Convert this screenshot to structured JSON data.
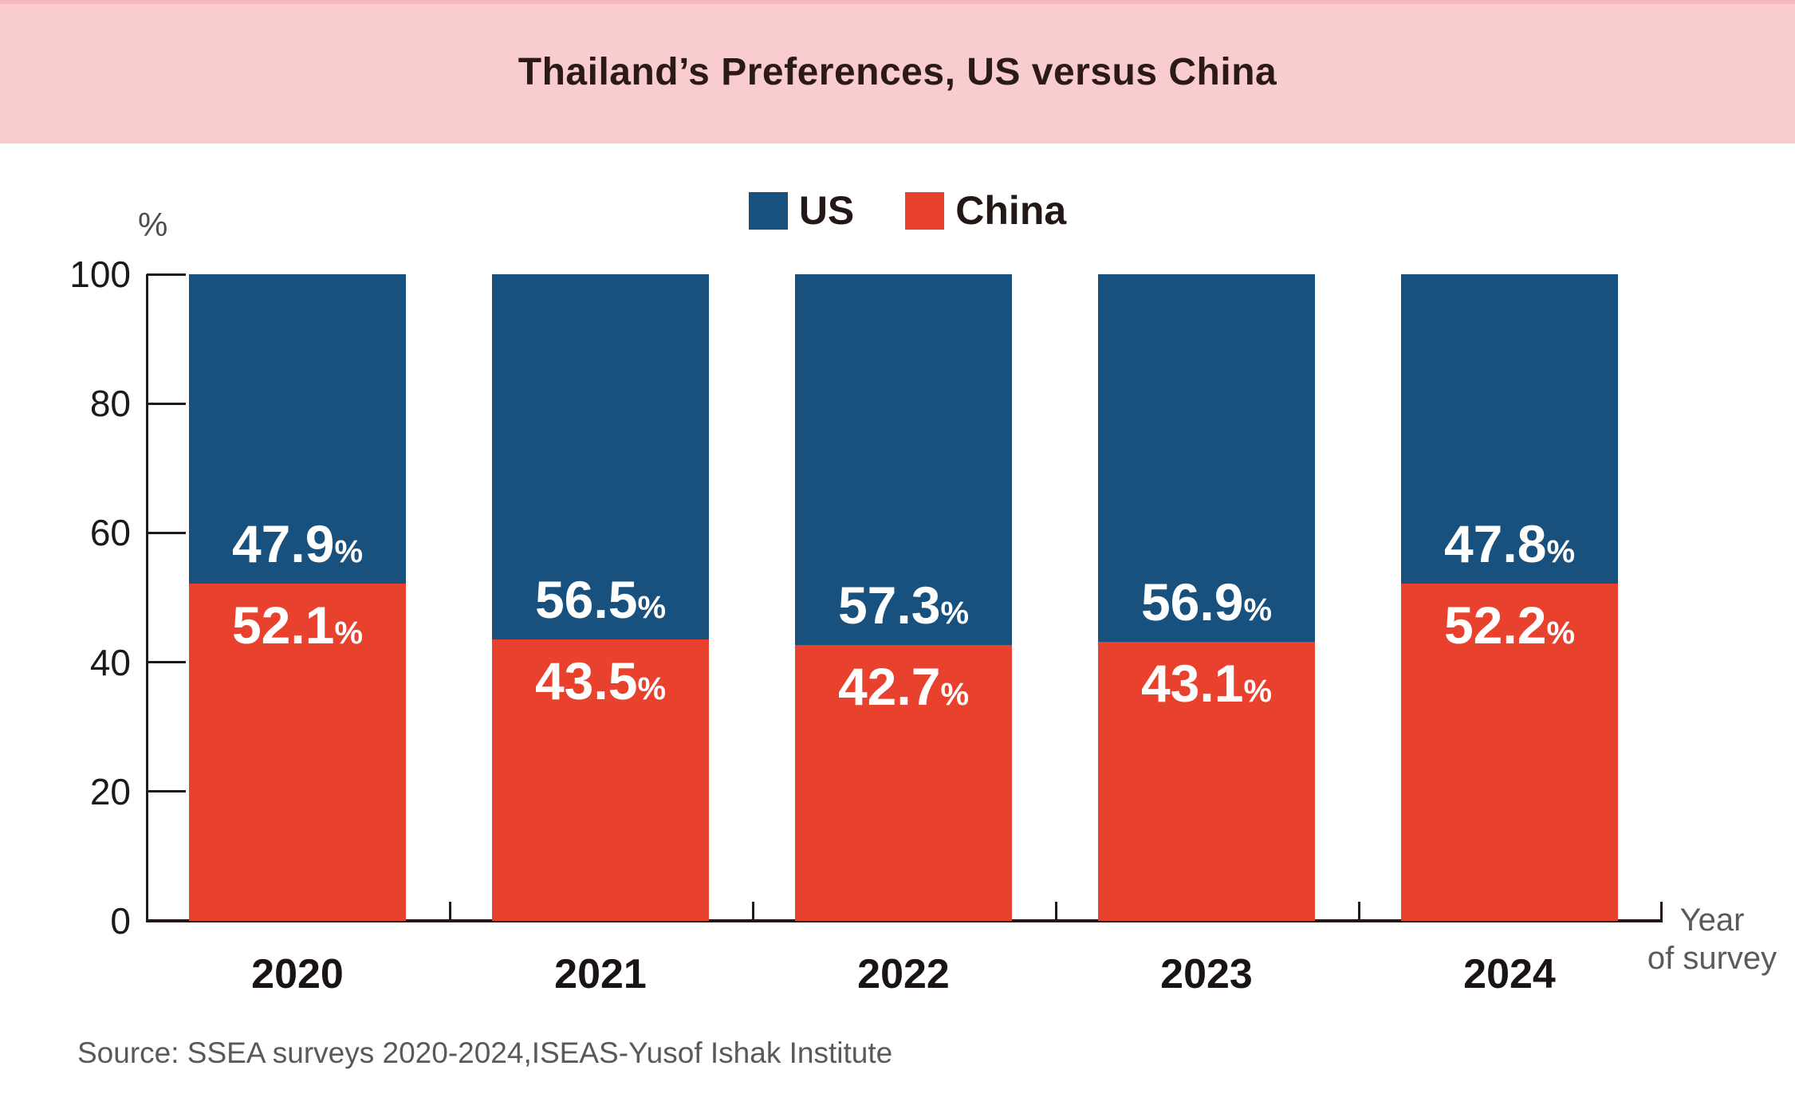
{
  "banner": {
    "title": "Thailand’s Preferences, US versus China",
    "background": "#F9CDD0",
    "top_edge_color": "#F2AFB5"
  },
  "legend": {
    "items": [
      {
        "label": "US",
        "color": "#19517E"
      },
      {
        "label": "China",
        "color": "#E8422E"
      }
    ]
  },
  "axis": {
    "unit_label": "%",
    "x_axis_label_line1": "Year",
    "x_axis_label_line2": "of survey"
  },
  "chart_data": {
    "type": "bar",
    "stacked": true,
    "title": "Thailand’s Preferences, US versus China",
    "categories": [
      "2020",
      "2021",
      "2022",
      "2023",
      "2024"
    ],
    "series": [
      {
        "name": "US",
        "color": "#19517E",
        "values": [
          47.9,
          56.5,
          57.3,
          56.9,
          47.8
        ]
      },
      {
        "name": "China",
        "color": "#E8422E",
        "values": [
          52.1,
          43.5,
          42.7,
          43.1,
          52.2
        ]
      }
    ],
    "value_suffix": "%",
    "ylabel": "%",
    "xlabel": "Year of survey",
    "ylim": [
      0,
      100
    ],
    "yticks": [
      0,
      20,
      40,
      60,
      80,
      100
    ],
    "grid": false,
    "legend_position": "top-center"
  },
  "source": {
    "text": "Source: SSEA surveys 2020-2024,ISEAS-Yusof Ishak Institute"
  }
}
